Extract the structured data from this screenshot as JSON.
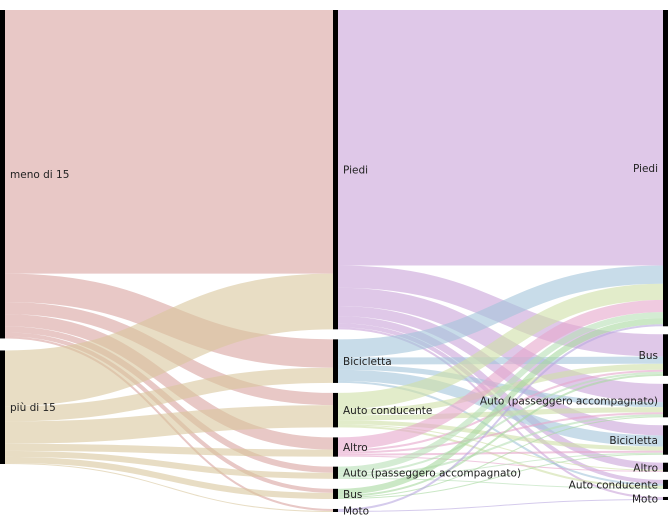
{
  "chart_data": {
    "type": "sankey",
    "columns": [
      {
        "nodes": [
          {
            "id": "meno",
            "label": "meno di 15",
            "color": "#d9a3a0"
          },
          {
            "id": "piu",
            "label": "più di 15",
            "color": "#d8c79d"
          }
        ]
      },
      {
        "nodes": [
          {
            "id": "m_piedi",
            "label": "Piedi",
            "color": "#c9a4d9"
          },
          {
            "id": "m_bici",
            "label": "Bicicletta",
            "color": "#a3c4db"
          },
          {
            "id": "m_autocond",
            "label": "Auto conducente",
            "color": "#cfdfa6"
          },
          {
            "id": "m_altro",
            "label": "Altro",
            "color": "#e6a6cc"
          },
          {
            "id": "m_autopass",
            "label": "Auto (passeggero accompagnato)",
            "color": "#b7dfb5"
          },
          {
            "id": "m_bus",
            "label": "Bus",
            "color": "#a9d9a0"
          },
          {
            "id": "m_moto",
            "label": "Moto",
            "color": "#b9a8e0"
          }
        ]
      },
      {
        "nodes": [
          {
            "id": "r_piedi",
            "label": "Piedi",
            "color": "#c9a4d9"
          },
          {
            "id": "r_bus",
            "label": "Bus",
            "color": "#a9d9a0"
          },
          {
            "id": "r_autopass",
            "label": "Auto (passeggero accompagnato)",
            "color": "#b7dfb5"
          },
          {
            "id": "r_bici",
            "label": "Bicicletta",
            "color": "#a3c4db"
          },
          {
            "id": "r_altro",
            "label": "Altro",
            "color": "#e6a6cc"
          },
          {
            "id": "r_autocond",
            "label": "Auto conducente",
            "color": "#cfdfa6"
          },
          {
            "id": "r_moto",
            "label": "Moto",
            "color": "#b9a8e0"
          }
        ]
      }
    ],
    "links": [
      {
        "source": "meno",
        "target": "m_piedi",
        "value": 260
      },
      {
        "source": "meno",
        "target": "m_bici",
        "value": 28
      },
      {
        "source": "meno",
        "target": "m_autocond",
        "value": 12
      },
      {
        "source": "meno",
        "target": "m_altro",
        "value": 12
      },
      {
        "source": "meno",
        "target": "m_autopass",
        "value": 6
      },
      {
        "source": "meno",
        "target": "m_bus",
        "value": 4
      },
      {
        "source": "meno",
        "target": "m_moto",
        "value": 2
      },
      {
        "source": "piu",
        "target": "m_piedi",
        "value": 55
      },
      {
        "source": "piu",
        "target": "m_bici",
        "value": 15
      },
      {
        "source": "piu",
        "target": "m_autocond",
        "value": 22
      },
      {
        "source": "piu",
        "target": "m_altro",
        "value": 7
      },
      {
        "source": "piu",
        "target": "m_autopass",
        "value": 6
      },
      {
        "source": "piu",
        "target": "m_bus",
        "value": 6
      },
      {
        "source": "piu",
        "target": "m_moto",
        "value": 1
      },
      {
        "source": "m_piedi",
        "target": "r_piedi",
        "value": 252
      },
      {
        "source": "m_piedi",
        "target": "r_bus",
        "value": 22
      },
      {
        "source": "m_piedi",
        "target": "r_autopass",
        "value": 18
      },
      {
        "source": "m_piedi",
        "target": "r_bici",
        "value": 10
      },
      {
        "source": "m_piedi",
        "target": "r_altro",
        "value": 7
      },
      {
        "source": "m_piedi",
        "target": "r_autocond",
        "value": 4
      },
      {
        "source": "m_piedi",
        "target": "r_moto",
        "value": 2
      },
      {
        "source": "m_bici",
        "target": "r_piedi",
        "value": 18
      },
      {
        "source": "m_bici",
        "target": "r_bus",
        "value": 7
      },
      {
        "source": "m_bici",
        "target": "r_autopass",
        "value": 5
      },
      {
        "source": "m_bici",
        "target": "r_bici",
        "value": 11
      },
      {
        "source": "m_bici",
        "target": "r_autocond",
        "value": 2
      },
      {
        "source": "m_autocond",
        "target": "r_piedi",
        "value": 16
      },
      {
        "source": "m_autocond",
        "target": "r_bus",
        "value": 6
      },
      {
        "source": "m_autocond",
        "target": "r_autopass",
        "value": 5
      },
      {
        "source": "m_autocond",
        "target": "r_bici",
        "value": 4
      },
      {
        "source": "m_autocond",
        "target": "r_altro",
        "value": 1
      },
      {
        "source": "m_autocond",
        "target": "r_autocond",
        "value": 2
      },
      {
        "source": "m_altro",
        "target": "r_piedi",
        "value": 12
      },
      {
        "source": "m_altro",
        "target": "r_bus",
        "value": 2
      },
      {
        "source": "m_altro",
        "target": "r_autopass",
        "value": 2
      },
      {
        "source": "m_altro",
        "target": "r_bici",
        "value": 2
      },
      {
        "source": "m_altro",
        "target": "r_altro",
        "value": 1
      },
      {
        "source": "m_autopass",
        "target": "r_piedi",
        "value": 6
      },
      {
        "source": "m_autopass",
        "target": "r_bus",
        "value": 2
      },
      {
        "source": "m_autopass",
        "target": "r_autopass",
        "value": 2
      },
      {
        "source": "m_autopass",
        "target": "r_bici",
        "value": 1
      },
      {
        "source": "m_autopass",
        "target": "r_autocond",
        "value": 1
      },
      {
        "source": "m_bus",
        "target": "r_piedi",
        "value": 6
      },
      {
        "source": "m_bus",
        "target": "r_bus",
        "value": 2
      },
      {
        "source": "m_bus",
        "target": "r_autopass",
        "value": 1
      },
      {
        "source": "m_bus",
        "target": "r_bici",
        "value": 1
      },
      {
        "source": "m_moto",
        "target": "r_piedi",
        "value": 2
      },
      {
        "source": "m_moto",
        "target": "r_moto",
        "value": 1
      }
    ]
  }
}
